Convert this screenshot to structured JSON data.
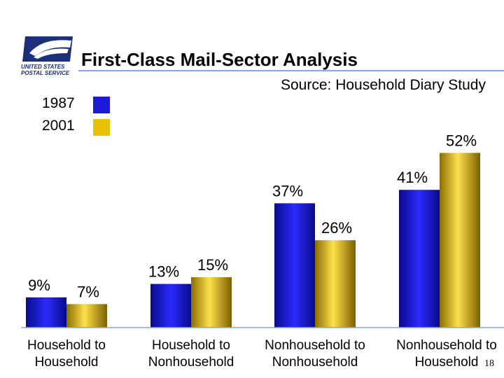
{
  "header": {
    "logo_text_line1": "UNITED STATES",
    "logo_text_line2": "POSTAL SERVICE",
    "title": "First-Class Mail-Sector Analysis",
    "source": "Source: Household Diary Study"
  },
  "colors": {
    "series_1987": "#1a1ad8",
    "series_2001": "#e6c200",
    "rule": "#8aa8d8"
  },
  "chart_data": {
    "type": "bar",
    "title": "First-Class Mail-Sector Analysis",
    "subtitle": "Source: Household Diary Study",
    "categories": [
      [
        "Household to",
        "Household"
      ],
      [
        "Household to",
        "Nonhousehold"
      ],
      [
        "Nonhousehold to",
        "Nonhousehold"
      ],
      [
        "Nonhousehold to",
        "Household"
      ]
    ],
    "series": [
      {
        "name": "1987",
        "values": [
          9,
          13,
          37,
          41
        ],
        "labels": [
          "9%",
          "13%",
          "37%",
          "41%"
        ]
      },
      {
        "name": "2001",
        "values": [
          7,
          15,
          26,
          52
        ],
        "labels": [
          "7%",
          "15%",
          "26%",
          "52%"
        ]
      }
    ],
    "unit": "%",
    "ylim": [
      0,
      60
    ],
    "legend_position": "top-left",
    "grid": false,
    "xlabel": "",
    "ylabel": ""
  },
  "footer": {
    "page_number": "18"
  }
}
